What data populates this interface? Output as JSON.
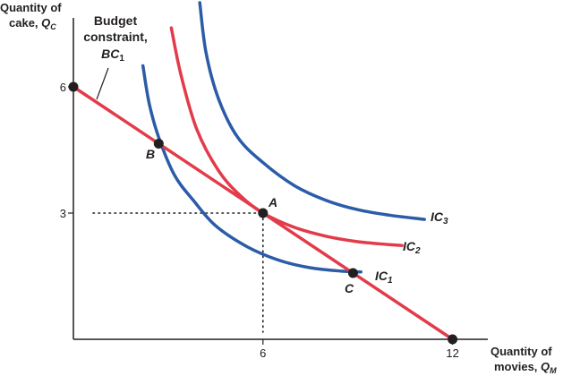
{
  "chart_data": {
    "type": "line",
    "y_axis": {
      "label_line1": "Quantity of",
      "label_line2": "cake, ",
      "var": "Q",
      "sub": "C",
      "range": [
        0,
        8
      ]
    },
    "x_axis": {
      "label_line1": "Quantity of",
      "label_line2": "movies, ",
      "var": "Q",
      "sub": "M",
      "range": [
        0,
        15.4
      ]
    },
    "ticks": {
      "x": [
        {
          "value": 6,
          "label": "6"
        },
        {
          "value": 12,
          "label": "12"
        }
      ],
      "y": [
        {
          "value": 6,
          "label": "6"
        },
        {
          "value": 3,
          "label": "3"
        }
      ]
    },
    "budget": {
      "label_line1": "Budget",
      "label_line2": "constraint,",
      "label_line3": "BC",
      "label_sub": "1",
      "color": "#e23b4a",
      "x": [
        0,
        12
      ],
      "y": [
        6,
        0
      ]
    },
    "curves": [
      {
        "label": "IC",
        "sub": "1",
        "color": "#2b5ca8",
        "points": [
          [
            2.2,
            6.5
          ],
          [
            2.4,
            5.6
          ],
          [
            2.7,
            4.8
          ],
          [
            3.2,
            3.9
          ],
          [
            3.8,
            3.3
          ],
          [
            4.5,
            2.7
          ],
          [
            5.5,
            2.2
          ],
          [
            6.5,
            1.88
          ],
          [
            7.5,
            1.7
          ],
          [
            8.5,
            1.62
          ],
          [
            9.1,
            1.6
          ]
        ]
      },
      {
        "label": "IC",
        "sub": "2",
        "color": "#e23b4a",
        "points": [
          [
            3.1,
            7.4
          ],
          [
            3.4,
            6.3
          ],
          [
            3.9,
            5.0
          ],
          [
            4.6,
            4.0
          ],
          [
            5.3,
            3.4
          ],
          [
            6.0,
            3.0
          ],
          [
            7.0,
            2.66
          ],
          [
            8.0,
            2.45
          ],
          [
            9.0,
            2.32
          ],
          [
            10.0,
            2.25
          ],
          [
            10.4,
            2.23
          ]
        ]
      },
      {
        "label": "IC",
        "sub": "3",
        "color": "#2b5ca8",
        "points": [
          [
            4.0,
            8.0
          ],
          [
            4.2,
            6.8
          ],
          [
            4.6,
            5.7
          ],
          [
            5.2,
            4.8
          ],
          [
            6.0,
            4.2
          ],
          [
            7.0,
            3.65
          ],
          [
            8.0,
            3.3
          ],
          [
            9.0,
            3.08
          ],
          [
            10.0,
            2.95
          ],
          [
            11.0,
            2.86
          ],
          [
            11.1,
            2.85
          ]
        ]
      }
    ],
    "points": [
      {
        "name": "A",
        "x": 6.0,
        "y": 3.0
      },
      {
        "name": "B",
        "x": 2.7,
        "y": 4.65
      },
      {
        "name": "C",
        "x": 8.85,
        "y": 1.575
      }
    ],
    "guides": {
      "x": 6,
      "y": 3
    }
  }
}
